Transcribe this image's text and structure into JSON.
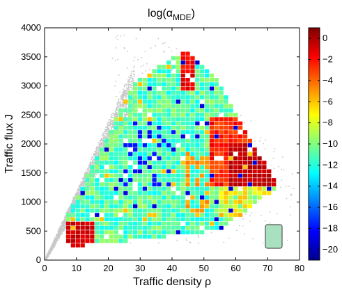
{
  "chart_data": {
    "type": "heatmap",
    "title": {
      "main": "log(α",
      "sub": "MDE",
      "close": ")"
    },
    "xlabel": "Traffic density ρ",
    "ylabel": "Traffic flux J",
    "xlim": [
      0,
      80
    ],
    "ylim": [
      0,
      4000
    ],
    "xticks": [
      "0",
      "10",
      "20",
      "30",
      "40",
      "50",
      "60",
      "70",
      "80"
    ],
    "yticks": [
      "0",
      "500",
      "1000",
      "1500",
      "2000",
      "2500",
      "3000",
      "3500",
      "4000"
    ],
    "colorbar": {
      "range": [
        -21,
        1
      ],
      "ticks": [
        "0",
        "−2",
        "−4",
        "−6",
        "−8",
        "−10",
        "−12",
        "−14",
        "−16",
        "−18",
        "−20"
      ],
      "colormap": "jet"
    },
    "cell_size": {
      "drho": 1.5,
      "dJ": 75
    },
    "background_points": {
      "color": "#c8c8c8",
      "description": "grey scatter of all observed states"
    },
    "legend_patch_color": "#a8e0c0",
    "grid": false
  }
}
